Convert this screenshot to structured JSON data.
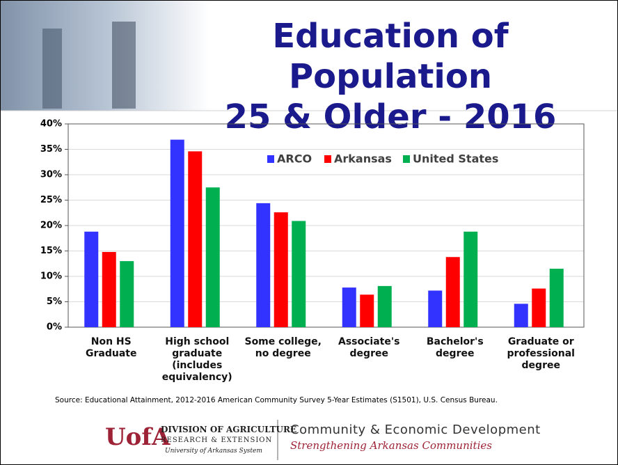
{
  "title_lines": [
    "Education of Population",
    "25 & Older - 2016"
  ],
  "chart_data": {
    "type": "bar",
    "categories": [
      "Non HS Graduate",
      "High school graduate (includes equivalency)",
      "Some college, no degree",
      "Associate's degree",
      "Bachelor's degree",
      "Graduate or professional degree"
    ],
    "series": [
      {
        "name": "ARCO",
        "color": "#3333ff",
        "values": [
          18.8,
          36.9,
          24.4,
          7.8,
          7.2,
          4.6
        ]
      },
      {
        "name": "Arkansas",
        "color": "#ff0000",
        "values": [
          14.8,
          34.6,
          22.6,
          6.4,
          13.8,
          7.6
        ]
      },
      {
        "name": "United States",
        "color": "#00b050",
        "values": [
          13.0,
          27.5,
          20.9,
          8.1,
          18.8,
          11.5
        ]
      }
    ],
    "ylim": [
      0,
      40
    ],
    "yticks": [
      {
        "value": 0,
        "label": "0%"
      },
      {
        "value": 5,
        "label": "5%"
      },
      {
        "value": 10,
        "label": "10%"
      },
      {
        "value": 15,
        "label": "15%"
      },
      {
        "value": 20,
        "label": "20%"
      },
      {
        "value": 25,
        "label": "25%"
      },
      {
        "value": 30,
        "label": "30%"
      },
      {
        "value": 35,
        "label": "35%"
      },
      {
        "value": 40,
        "label": "40%"
      }
    ],
    "grid": true
  },
  "source": "Source: Educational Attainment, 2012-2016 American Community Survey 5-Year Estimates (S1501), U.S. Census Bureau.",
  "footer": {
    "logo_mark": "UofA",
    "division": "DIVISION OF AGRICULTURE",
    "research": "RESEARCH & EXTENSION",
    "system": "University of Arkansas System",
    "department": "Community & Economic Development",
    "tagline": "Strengthening Arkansas Communities"
  }
}
